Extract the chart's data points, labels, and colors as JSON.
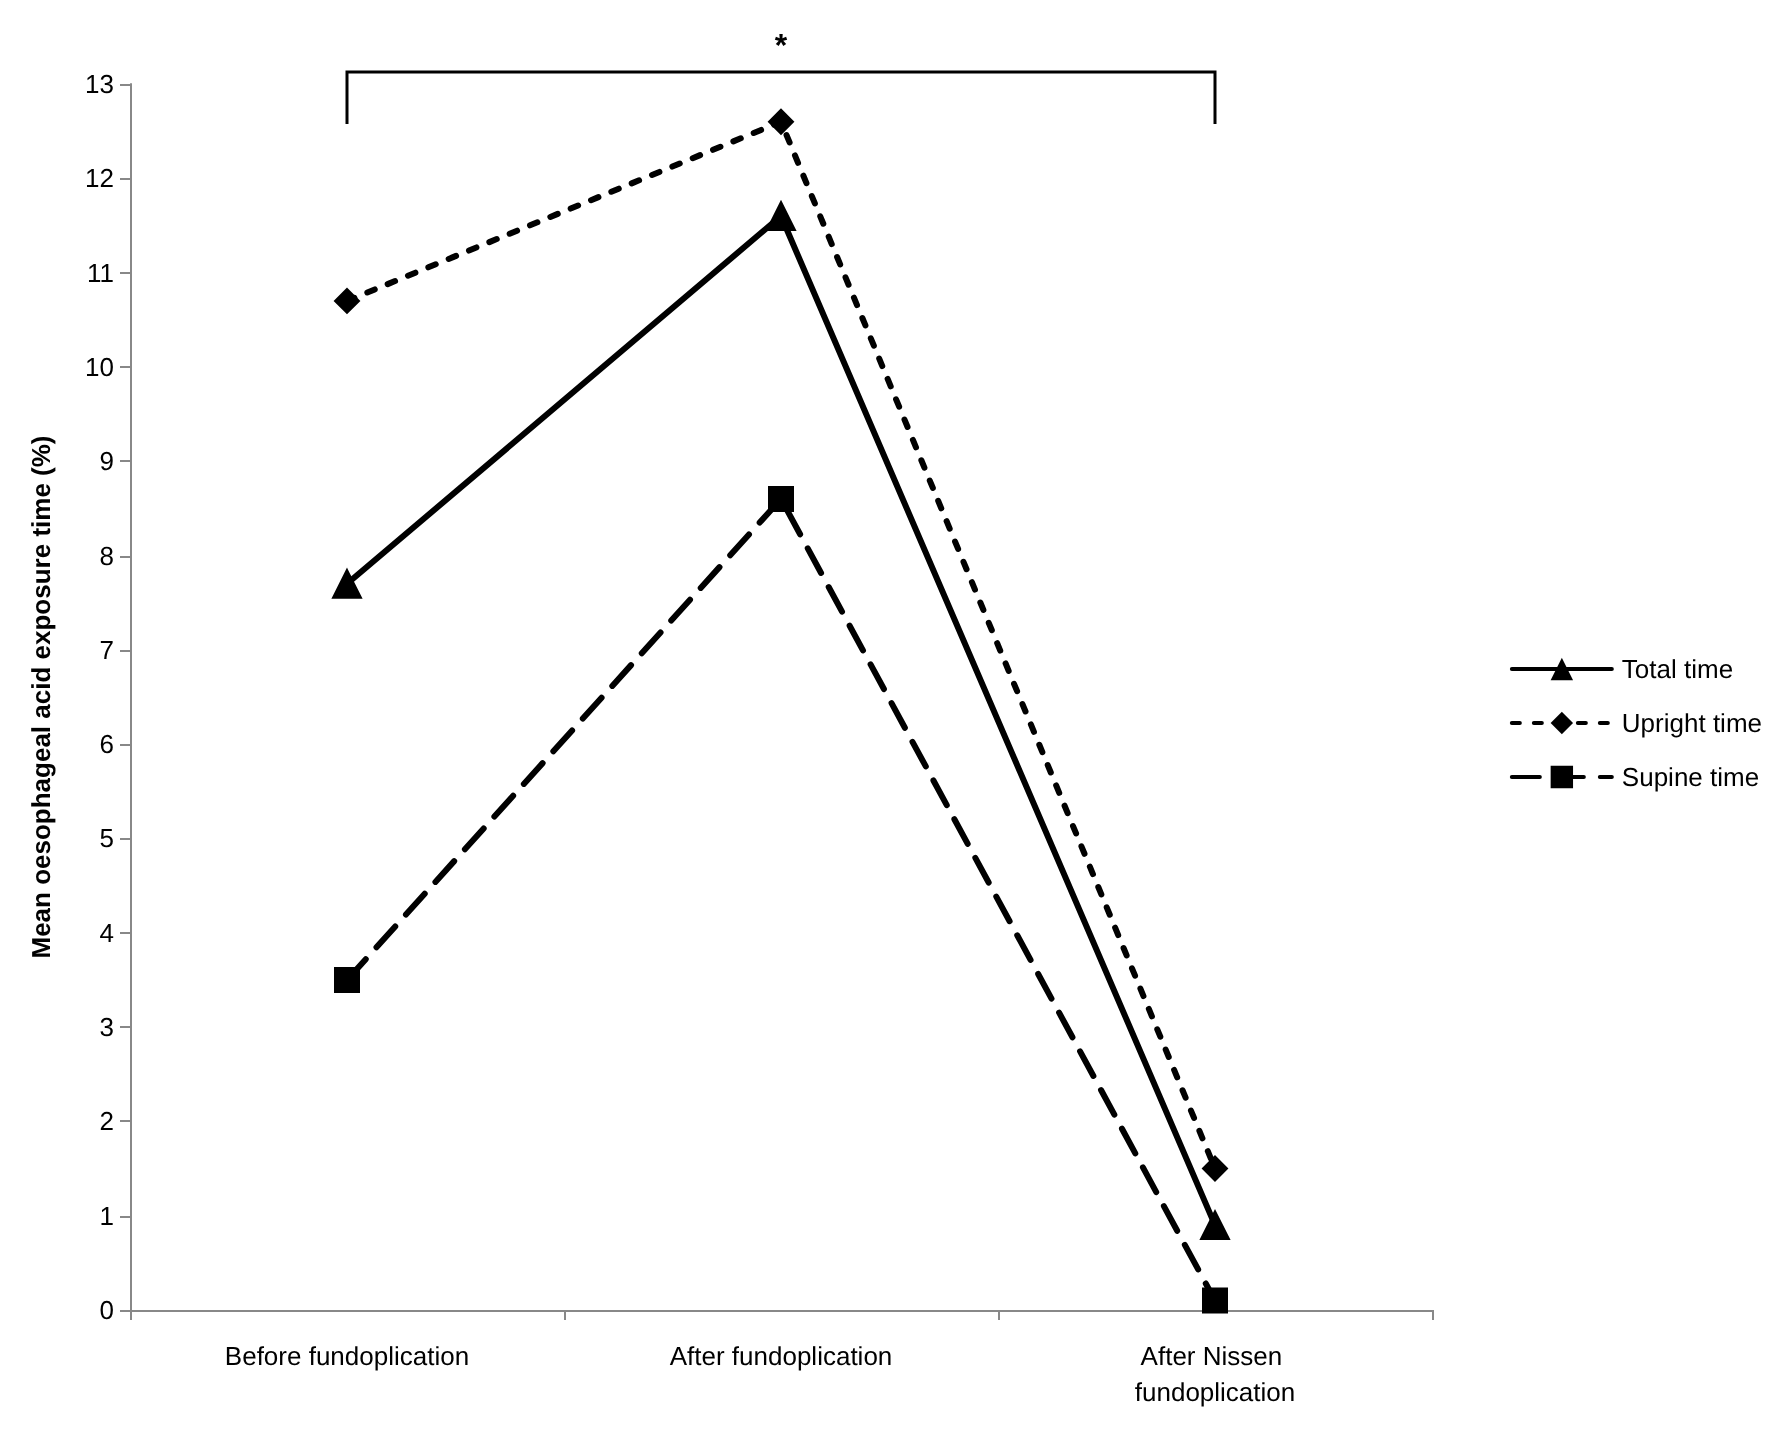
{
  "chart_data": {
    "type": "line",
    "ylabel": "Mean oesophageal acid exposure time (%)",
    "categories": [
      "Before fundoplication",
      "After fundoplication",
      "After Nissen fundoplication"
    ],
    "series": [
      {
        "name": "Total time",
        "color": "#000000",
        "values": [
          7.7,
          11.6,
          0.9
        ],
        "marker": "triangle",
        "line_style": "solid"
      },
      {
        "name": "Upright time",
        "color": "#000000",
        "values": [
          10.7,
          12.6,
          1.5
        ],
        "marker": "diamond",
        "line_style": "dotted"
      },
      {
        "name": "Supine time",
        "color": "#000000",
        "values": [
          3.5,
          8.6,
          0.1
        ],
        "marker": "square",
        "line_style": "dashed"
      }
    ],
    "ylim": [
      0,
      13
    ],
    "yticks": [
      0,
      1,
      2,
      3,
      4,
      5,
      6,
      7,
      8,
      9,
      10,
      11,
      12,
      13
    ],
    "grid": false,
    "legend": "right",
    "annotations": [
      "*"
    ]
  }
}
